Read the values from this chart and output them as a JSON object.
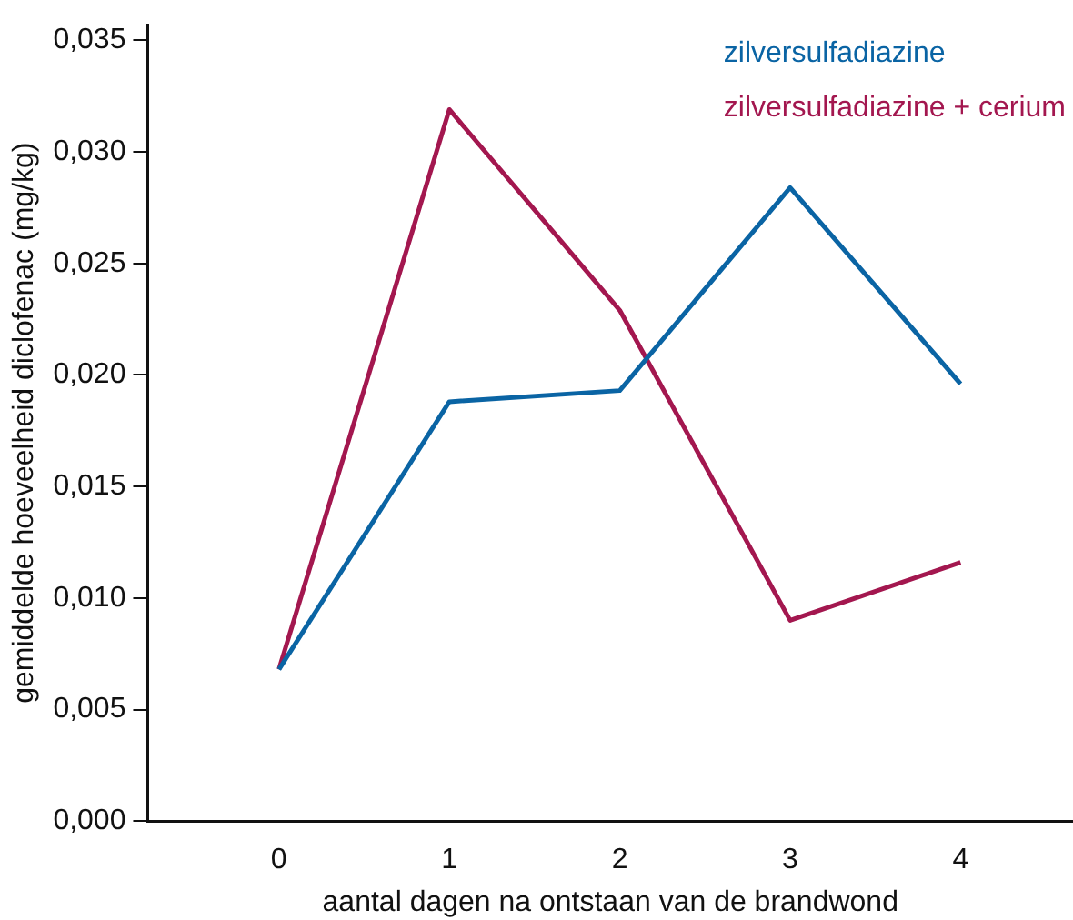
{
  "chart_data": {
    "type": "line",
    "xlabel": "aantal dagen na ontstaan van de brandwond",
    "ylabel": "gemiddelde hoeveelheid diclofenac (mg/kg)",
    "x": [
      0,
      1,
      2,
      3,
      4
    ],
    "series": [
      {
        "name": "zilversulfadiazine",
        "color": "#0a64a4",
        "values": [
          0.0068,
          0.0188,
          0.0193,
          0.0284,
          0.0196
        ]
      },
      {
        "name": "zilversulfadiazine + cerium",
        "color": "#a3174f",
        "values": [
          0.0068,
          0.0319,
          0.0229,
          0.009,
          0.0116
        ]
      }
    ],
    "xlim": [
      -0.77,
      4.66
    ],
    "xticks": [
      0,
      1,
      2,
      3,
      4
    ],
    "ylim": [
      0,
      0.0357
    ],
    "yticks": [
      {
        "value": 0,
        "label": "0,000"
      },
      {
        "value": 0.005,
        "label": "0,005"
      },
      {
        "value": 0.01,
        "label": "0,010"
      },
      {
        "value": 0.015,
        "label": "0,015"
      },
      {
        "value": 0.02,
        "label": "0,020"
      },
      {
        "value": 0.025,
        "label": "0,025"
      },
      {
        "value": 0.03,
        "label": "0,030"
      },
      {
        "value": 0.035,
        "label": "0,035"
      }
    ],
    "grid": false,
    "legend": "top right",
    "marker": "none",
    "line_style": "solid"
  }
}
